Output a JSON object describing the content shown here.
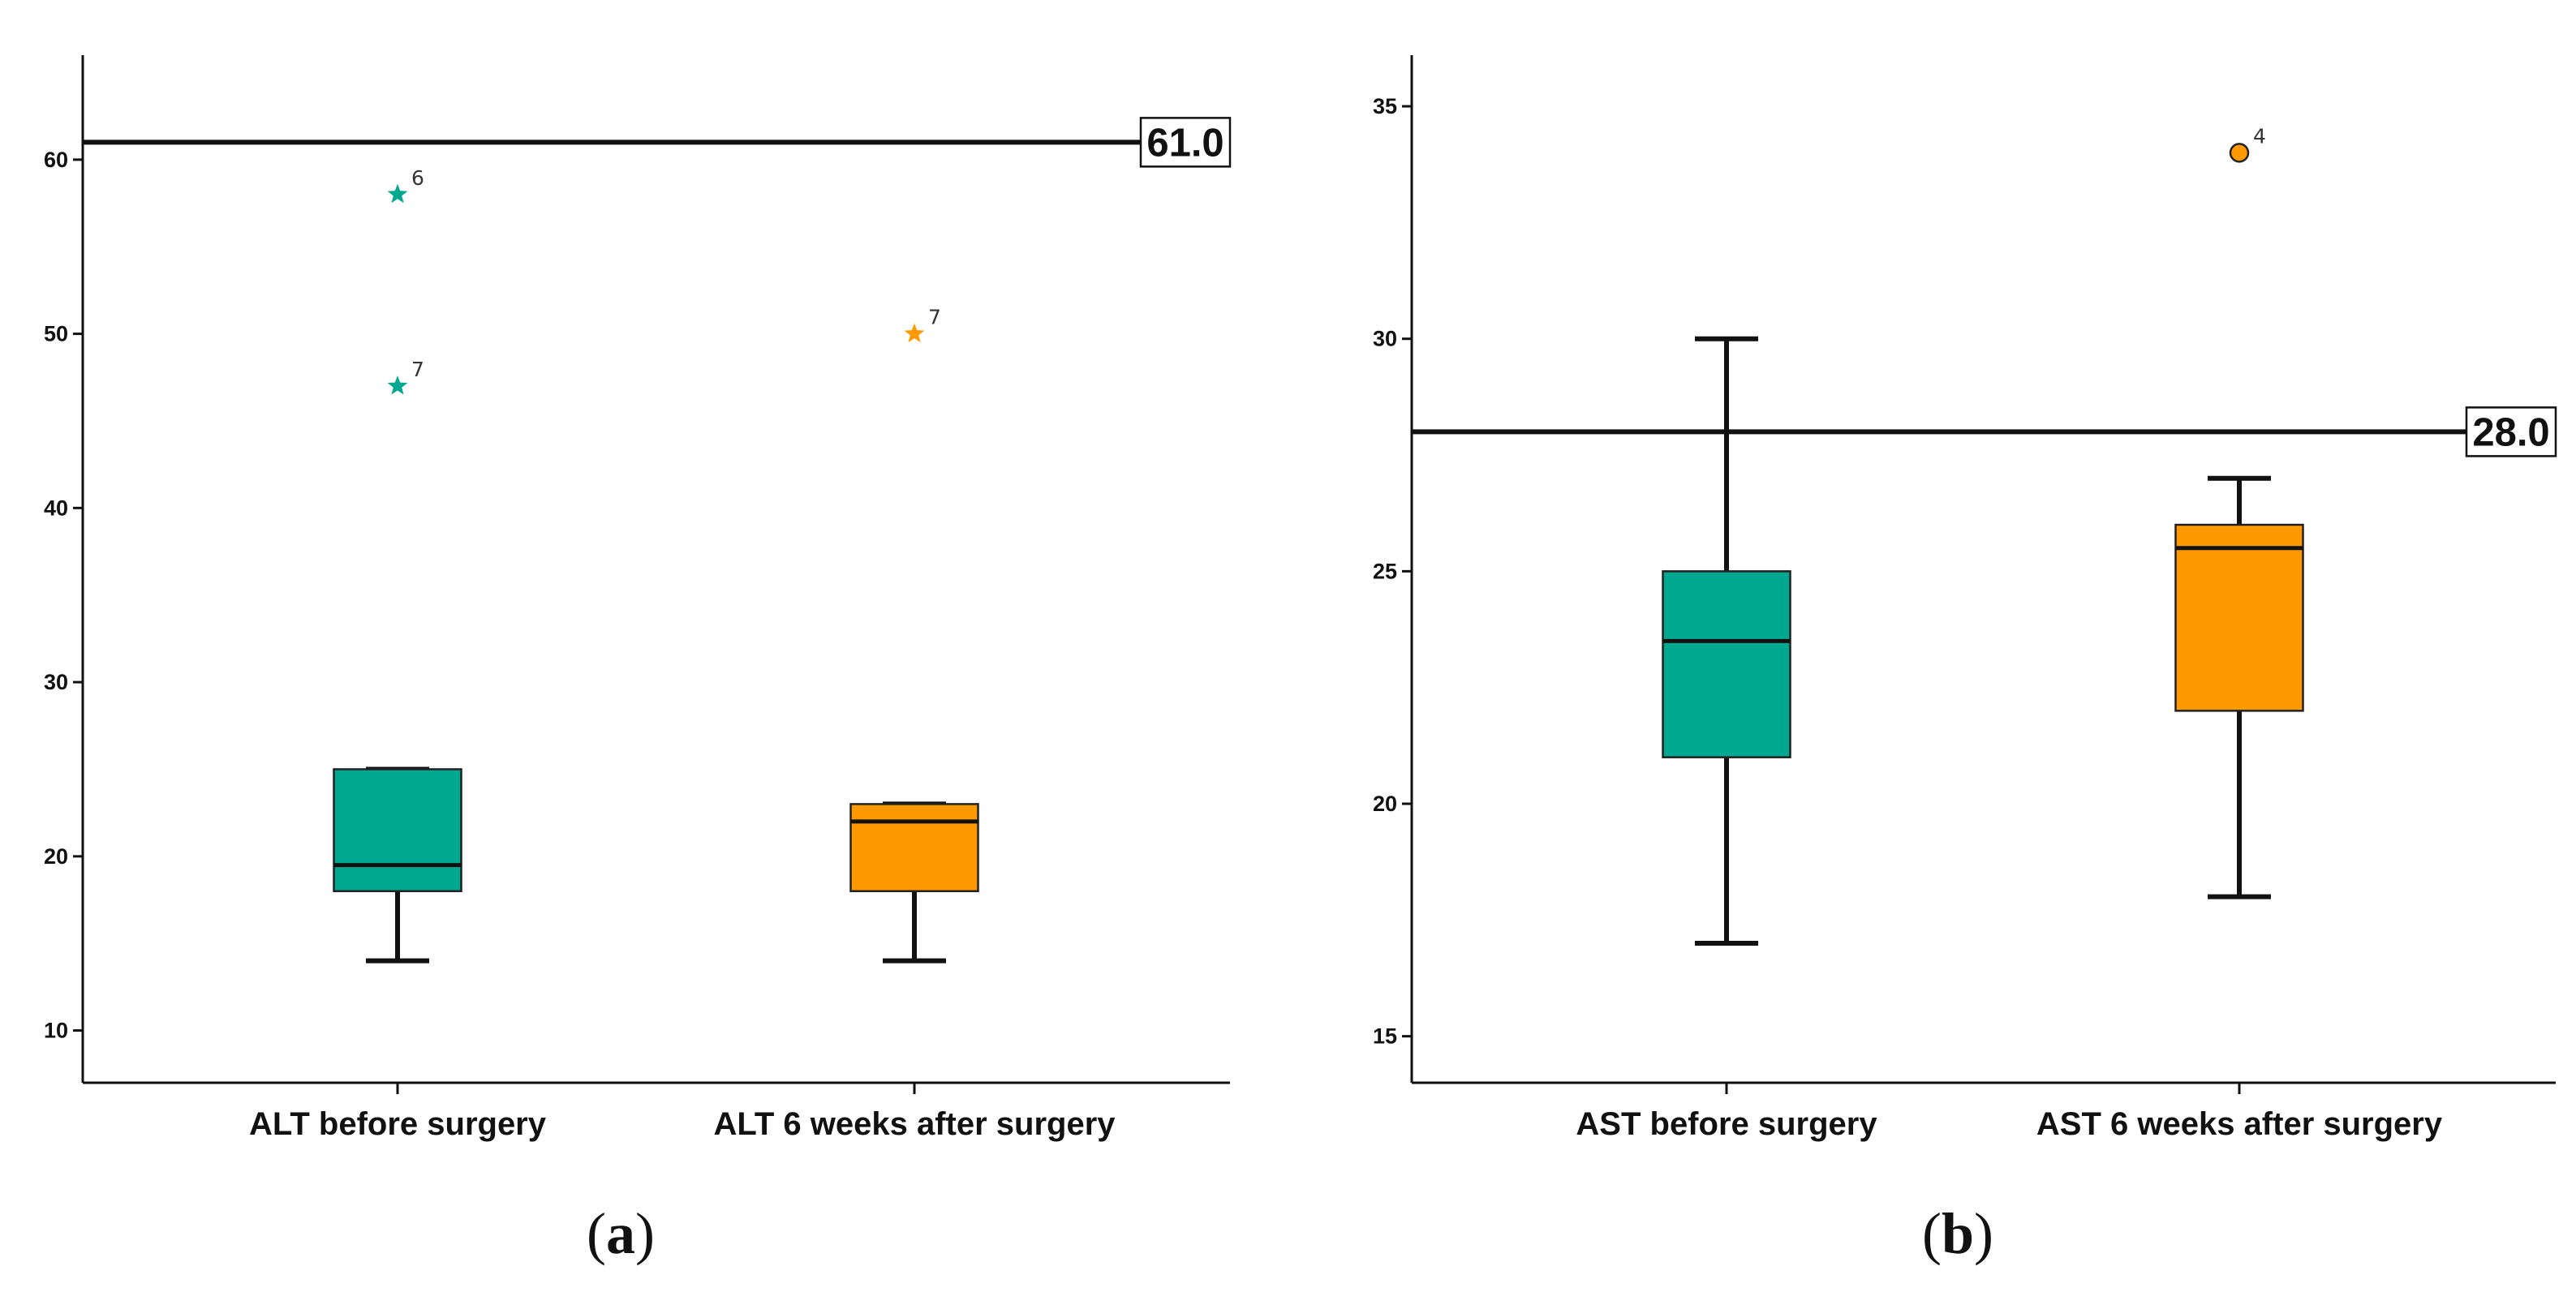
{
  "chart_data": [
    {
      "type": "box",
      "panel_label": "a",
      "ylim": [
        7,
        66
      ],
      "yticks": [
        10,
        20,
        30,
        40,
        50,
        60
      ],
      "reference_line": {
        "value": 61.0,
        "label": "61.0"
      },
      "grid": false,
      "categories": [
        "ALT before surgery",
        "ALT 6 weeks after surgery"
      ],
      "boxes": [
        {
          "category": "ALT before surgery",
          "color": "#00A88F",
          "whisker_low": 14,
          "q1": 18,
          "median": 19.5,
          "q3": 25,
          "whisker_high": 25,
          "outliers": [
            {
              "value": 58,
              "label": "6",
              "marker": "star"
            },
            {
              "value": 47,
              "label": "7",
              "marker": "star"
            }
          ]
        },
        {
          "category": "ALT 6 weeks after surgery",
          "color": "#FF9900",
          "whisker_low": 14,
          "q1": 18,
          "median": 22,
          "q3": 23,
          "whisker_high": 23,
          "outliers": [
            {
              "value": 50,
              "label": "7",
              "marker": "star"
            }
          ]
        }
      ]
    },
    {
      "type": "box",
      "panel_label": "b",
      "ylim": [
        14.0,
        36.1
      ],
      "yticks": [
        15,
        20,
        25,
        30,
        35
      ],
      "reference_line": {
        "value": 28.0,
        "label": "28.0"
      },
      "grid": false,
      "categories": [
        "AST before surgery",
        "AST 6 weeks after surgery"
      ],
      "boxes": [
        {
          "category": "AST before surgery",
          "color": "#00A88F",
          "whisker_low": 17,
          "q1": 21,
          "median": 23.5,
          "q3": 25,
          "whisker_high": 30,
          "outliers": []
        },
        {
          "category": "AST 6 weeks after surgery",
          "color": "#FF9900",
          "whisker_low": 18,
          "q1": 22,
          "median": 25.5,
          "q3": 26,
          "whisker_high": 27,
          "outliers": [
            {
              "value": 34,
              "label": "4",
              "marker": "circle"
            }
          ]
        }
      ]
    }
  ]
}
